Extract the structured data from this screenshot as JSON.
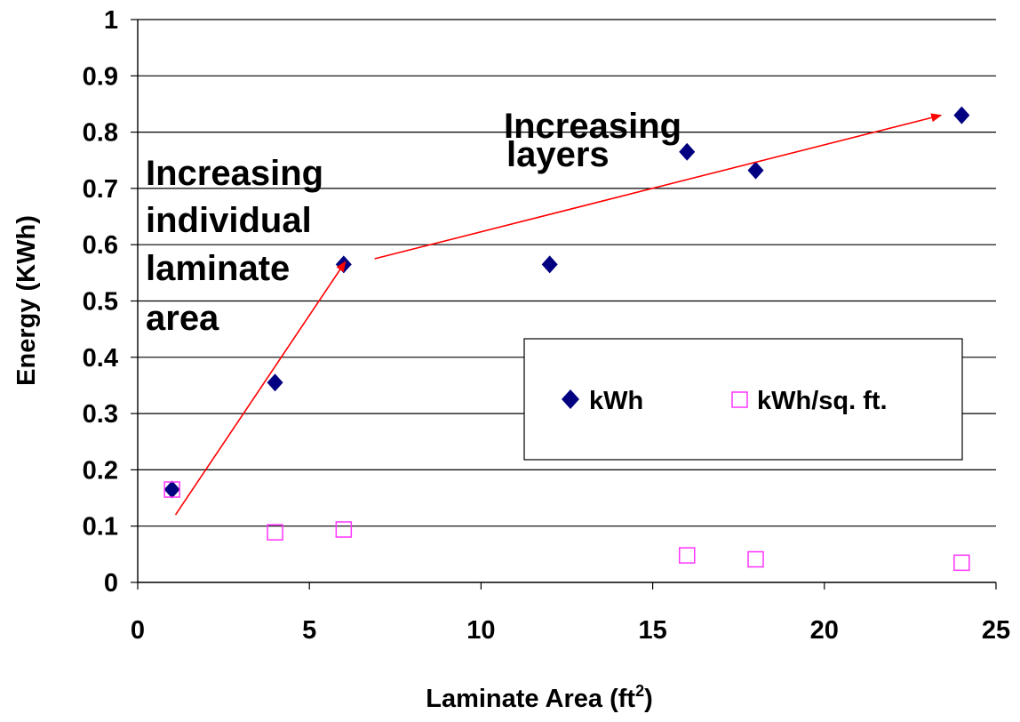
{
  "chart_data": {
    "type": "scatter",
    "xlabel": "Laminate Area (ft",
    "xlabel_superscript": "2",
    "xlabel_suffix": ")",
    "ylabel": "Energy (KWh)",
    "xlim": [
      0,
      25
    ],
    "ylim": [
      0,
      1
    ],
    "x_ticks": [
      "0",
      "5",
      "10",
      "15",
      "20",
      "25"
    ],
    "y_ticks": [
      "0",
      "0.1",
      "0.2",
      "0.3",
      "0.4",
      "0.5",
      "0.6",
      "0.7",
      "0.8",
      "0.9",
      "1"
    ],
    "grid": "horizontal",
    "legend_placement": "center-right",
    "series": [
      {
        "name": "kWh",
        "marker": "filled-diamond",
        "color": "#000080",
        "x": [
          1,
          4,
          6,
          12,
          16,
          18,
          24
        ],
        "y": [
          0.165,
          0.355,
          0.565,
          0.565,
          0.765,
          0.732,
          0.83
        ]
      },
      {
        "name": "kWh/sq. ft.",
        "marker": "open-square",
        "color": "#ff33ff",
        "x": [
          1,
          4,
          6,
          16,
          18,
          24
        ],
        "y": [
          0.165,
          0.089,
          0.094,
          0.048,
          0.041,
          0.035
        ]
      }
    ],
    "annotations": {
      "left_lines": [
        "Increasing",
        "individual",
        "laminate",
        "area"
      ],
      "right_lines": [
        "Increasing",
        "layers"
      ],
      "arrow_color": "#ff0000",
      "arrows": [
        {
          "from": [
            1.1,
            0.12
          ],
          "to": [
            6.05,
            0.57
          ]
        },
        {
          "from": [
            6.9,
            0.575
          ],
          "to": [
            23.4,
            0.83
          ]
        }
      ]
    }
  }
}
